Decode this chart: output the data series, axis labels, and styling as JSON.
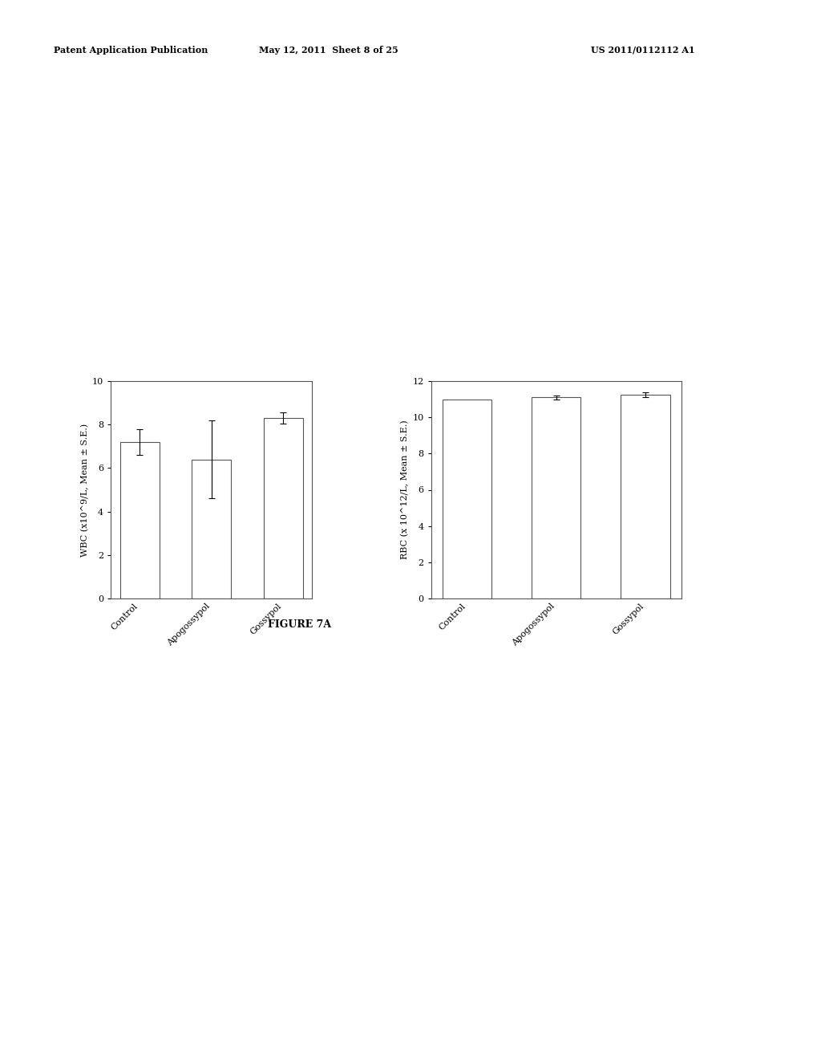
{
  "header_left": "Patent Application Publication",
  "header_mid": "May 12, 2011  Sheet 8 of 25",
  "header_right": "US 2011/0112112 A1",
  "figure_label": "FIGURE 7A",
  "wbc": {
    "categories": [
      "Control",
      "Apogossypol",
      "Gossypol"
    ],
    "values": [
      7.2,
      6.4,
      8.3
    ],
    "errors": [
      0.6,
      1.8,
      0.25
    ],
    "ylabel": "WBC (x10^9/L, Mean ± S.E.)",
    "ylim": [
      0,
      10
    ],
    "yticks": [
      0,
      2,
      4,
      6,
      8,
      10
    ]
  },
  "rbc": {
    "categories": [
      "Control",
      "Apogossypol",
      "Gossypol"
    ],
    "values": [
      11.0,
      11.1,
      11.25
    ],
    "errors": [
      0.0,
      0.12,
      0.15
    ],
    "ylabel": "RBC (x 10^12/L, Mean ± S.E.)",
    "ylim": [
      0,
      12
    ],
    "yticks": [
      0,
      2,
      4,
      6,
      8,
      10,
      12
    ]
  },
  "bar_color": "#ffffff",
  "bar_edgecolor": "#555555",
  "background_color": "#ffffff",
  "tick_fontsize": 8,
  "label_fontsize": 8,
  "header_fontsize": 8,
  "figure_label_fontsize": 9
}
